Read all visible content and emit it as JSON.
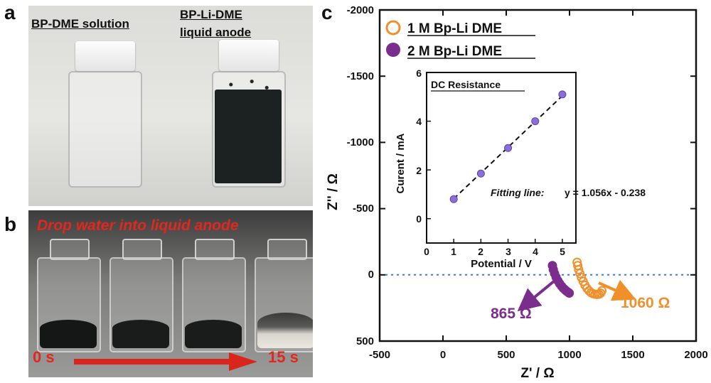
{
  "panel_labels": {
    "a": "a",
    "b": "b",
    "c": "c"
  },
  "panel_a": {
    "left_caption": "BP-DME solution",
    "right_caption_line1": "BP-Li-DME",
    "right_caption_line2": "liquid anode"
  },
  "panel_b": {
    "caption": "Drop water into liquid anode",
    "time_start": "0 s",
    "time_end": "15 s",
    "arrow_color": "#d9261c",
    "fill_levels": [
      1.0,
      1.0,
      1.0,
      0.45
    ]
  },
  "colors": {
    "orange": "#f0902a",
    "purple": "#7b2d8e",
    "text_red": "#e0281e",
    "dotted": "#3b7fbf"
  },
  "chart_data": [
    {
      "type": "scatter",
      "xlabel": "Z' / Ω",
      "ylabel": "Z'' / Ω",
      "xlim": [
        -500,
        2000
      ],
      "ylim": [
        500,
        -2000
      ],
      "xticks": [
        "-500",
        "0",
        "500",
        "1000",
        "1500",
        "2000"
      ],
      "yticks": [
        "-2000",
        "-1500",
        "-1000",
        "-500",
        "0",
        "500"
      ],
      "legend": {
        "position": "top-left",
        "entries": [
          "1 M Bp-Li DME",
          "2 M Bp-Li DME"
        ]
      },
      "series": [
        {
          "name": "1 M Bp-Li DME",
          "marker": "open-circle",
          "color": "#f0902a",
          "x": [
            1060,
            1065,
            1072,
            1082,
            1094,
            1108,
            1122,
            1138,
            1154,
            1170,
            1186,
            1202,
            1218,
            1232,
            1246,
            1256
          ],
          "y": [
            -95,
            -70,
            -40,
            -10,
            20,
            50,
            78,
            102,
            120,
            134,
            142,
            146,
            148,
            146,
            138,
            120
          ]
        },
        {
          "name": "2 M Bp-Li DME",
          "marker": "filled-circle",
          "color": "#7b2d8e",
          "x": [
            865,
            872,
            882,
            894,
            908,
            922,
            938,
            952,
            966,
            978,
            990,
            998
          ],
          "y": [
            -70,
            -40,
            -10,
            18,
            44,
            66,
            86,
            102,
            114,
            124,
            132,
            138
          ]
        }
      ],
      "annotations": [
        {
          "text": "865 Ω",
          "color": "#7b2d8e"
        },
        {
          "text": "1060 Ω",
          "color": "#f0902a"
        }
      ]
    },
    {
      "type": "scatter",
      "title": "DC Resistance",
      "xlabel": "Potential / V",
      "ylabel": "Curent / mA",
      "xlim": [
        0,
        5.5
      ],
      "ylim": [
        -1,
        6
      ],
      "xticks": [
        "0",
        "1",
        "2",
        "3",
        "4",
        "5"
      ],
      "yticks": [
        "0",
        "2",
        "4",
        "6"
      ],
      "series": [
        {
          "name": "",
          "color": "#8b6fd6",
          "x": [
            1,
            2,
            3,
            4,
            5
          ],
          "y": [
            0.8,
            1.85,
            2.9,
            4.0,
            5.1
          ]
        }
      ],
      "fit": {
        "slope": 1.056,
        "intercept": -0.238,
        "label": "Fitting line:",
        "equation": "y = 1.056x - 0.238"
      }
    }
  ]
}
